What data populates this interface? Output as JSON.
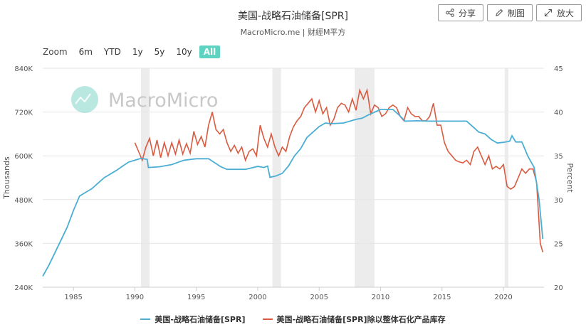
{
  "header": {
    "title": "美国-战略石油储备[SPR]",
    "subtitle": "MacroMicro.me | 财經M平方"
  },
  "actions": {
    "share": "分享",
    "draw": "制图",
    "enlarge": "放大"
  },
  "zoom": {
    "label": "Zoom",
    "options": [
      "6m",
      "YTD",
      "1y",
      "5y",
      "10y",
      "All"
    ],
    "active": "All"
  },
  "watermark": "MacroMicro",
  "colors": {
    "spr": "#4aaed4",
    "ratio": "#d95a40",
    "recession": "#ececec",
    "active_zoom": "#5fd3c1"
  },
  "chart_data": {
    "type": "line",
    "title": "美国-战略石油储备[SPR]",
    "x_range": [
      1982.5,
      2023.3
    ],
    "x_ticks": [
      "1985",
      "1990",
      "1995",
      "2000",
      "2005",
      "2010",
      "2015",
      "2020"
    ],
    "y_left": {
      "label": "Thousands",
      "range": [
        240,
        840
      ],
      "ticks": [
        "240K",
        "360K",
        "480K",
        "600K",
        "720K",
        "840K"
      ]
    },
    "y_right": {
      "label": "Percent",
      "range": [
        20,
        45
      ],
      "ticks": [
        "20",
        "25",
        "30",
        "35",
        "40",
        "45"
      ]
    },
    "recession_bands": [
      [
        1990.5,
        1991.2
      ],
      [
        2001.2,
        2001.9
      ],
      [
        2007.9,
        2009.5
      ],
      [
        2020.1,
        2020.4
      ]
    ],
    "legend_position": "bottom",
    "series": [
      {
        "name": "美国-战略石油储备[SPR]",
        "axis": "left",
        "x": [
          1982.5,
          1983.0,
          1983.5,
          1984.0,
          1984.5,
          1985.0,
          1985.5,
          1986.0,
          1986.5,
          1987.0,
          1987.5,
          1988.0,
          1988.5,
          1989.0,
          1989.5,
          1990.0,
          1990.5,
          1991.0,
          1991.1,
          1992.0,
          1993.0,
          1994.0,
          1995.0,
          1996.0,
          1997.0,
          1997.5,
          1998.0,
          1999.0,
          2000.0,
          2000.5,
          2000.8,
          2001.0,
          2001.5,
          2002.0,
          2002.5,
          2003.0,
          2003.5,
          2004.0,
          2004.5,
          2005.0,
          2005.5,
          2006.0,
          2007.0,
          2008.0,
          2008.5,
          2009.0,
          2010.0,
          2011.0,
          2011.5,
          2012.0,
          2013.0,
          2014.0,
          2015.0,
          2016.0,
          2017.0,
          2018.0,
          2018.5,
          2019.0,
          2019.5,
          2020.0,
          2020.5,
          2020.7,
          2021.0,
          2021.5,
          2022.0,
          2022.5,
          2022.9,
          2023.2
        ],
        "values": [
          270,
          300,
          335,
          370,
          405,
          450,
          490,
          500,
          510,
          525,
          540,
          550,
          560,
          572,
          583,
          588,
          593,
          590,
          568,
          570,
          576,
          588,
          592,
          592,
          570,
          563,
          563,
          563,
          571,
          568,
          572,
          541,
          545,
          552,
          572,
          600,
          620,
          650,
          665,
          680,
          690,
          688,
          690,
          700,
          703,
          712,
          727,
          727,
          712,
          695,
          696,
          695,
          695,
          695,
          695,
          665,
          660,
          645,
          635,
          637,
          640,
          655,
          638,
          638,
          598,
          568,
          480,
          372
        ]
      },
      {
        "name": "美国-战略石油储备[SPR]除以整体石化产品库存",
        "axis": "right",
        "x": [
          1990.0,
          1990.3,
          1990.6,
          1990.9,
          1991.2,
          1991.5,
          1991.8,
          1992.1,
          1992.4,
          1992.7,
          1993.0,
          1993.3,
          1993.6,
          1993.9,
          1994.2,
          1994.5,
          1994.8,
          1995.1,
          1995.4,
          1995.7,
          1996.0,
          1996.3,
          1996.6,
          1996.9,
          1997.2,
          1997.5,
          1997.8,
          1998.1,
          1998.4,
          1998.7,
          1999.0,
          1999.3,
          1999.6,
          1999.9,
          2000.2,
          2000.5,
          2000.8,
          2001.1,
          2001.4,
          2001.7,
          2002.0,
          2002.3,
          2002.6,
          2002.9,
          2003.2,
          2003.5,
          2003.8,
          2004.1,
          2004.4,
          2004.7,
          2005.0,
          2005.3,
          2005.6,
          2005.9,
          2006.2,
          2006.5,
          2006.8,
          2007.1,
          2007.4,
          2007.7,
          2008.0,
          2008.3,
          2008.6,
          2008.9,
          2009.2,
          2009.5,
          2009.8,
          2010.1,
          2010.4,
          2010.7,
          2011.0,
          2011.3,
          2011.6,
          2011.9,
          2012.2,
          2012.5,
          2012.8,
          2013.1,
          2013.4,
          2013.7,
          2014.0,
          2014.3,
          2014.6,
          2014.9,
          2015.2,
          2015.5,
          2015.8,
          2016.1,
          2016.4,
          2016.7,
          2017.0,
          2017.3,
          2017.6,
          2017.9,
          2018.2,
          2018.5,
          2018.8,
          2019.1,
          2019.4,
          2019.7,
          2020.0,
          2020.3,
          2020.6,
          2020.9,
          2021.2,
          2021.5,
          2021.8,
          2022.1,
          2022.4,
          2022.7,
          2023.0,
          2023.2
        ],
        "values": [
          36.5,
          35.5,
          34.5,
          36.0,
          37.0,
          35.0,
          36.8,
          34.8,
          36.5,
          35.0,
          36.5,
          35.2,
          36.8,
          35.2,
          36.4,
          35.3,
          37.8,
          36.3,
          37.2,
          36.0,
          38.5,
          40.0,
          38.0,
          37.5,
          38.0,
          36.5,
          35.5,
          36.2,
          35.3,
          36.0,
          34.5,
          35.5,
          35.8,
          35.0,
          38.5,
          37.0,
          36.0,
          37.5,
          36.0,
          35.0,
          36.0,
          35.5,
          37.2,
          38.3,
          39.0,
          39.5,
          40.5,
          41.0,
          41.5,
          40.0,
          41.3,
          39.8,
          40.5,
          38.5,
          39.2,
          40.5,
          41.0,
          40.8,
          40.0,
          41.5,
          40.2,
          42.5,
          41.5,
          42.5,
          39.8,
          40.8,
          40.5,
          39.5,
          39.8,
          40.5,
          40.8,
          40.5,
          39.5,
          39.0,
          40.5,
          39.8,
          39.5,
          39.5,
          39.0,
          39.0,
          39.5,
          41.0,
          38.5,
          38.5,
          36.5,
          35.5,
          35.0,
          34.5,
          34.3,
          34.2,
          34.5,
          34.0,
          35.5,
          36.0,
          35.0,
          34.0,
          35.0,
          33.5,
          33.8,
          33.5,
          34.0,
          31.5,
          31.2,
          31.5,
          32.5,
          33.5,
          33.0,
          33.5,
          33.5,
          32.0,
          25.0,
          24.0
        ]
      }
    ]
  },
  "legend": {
    "items": [
      "美国-战略石油储备[SPR]",
      "美国-战略石油储备[SPR]除以整体石化产品库存"
    ]
  }
}
